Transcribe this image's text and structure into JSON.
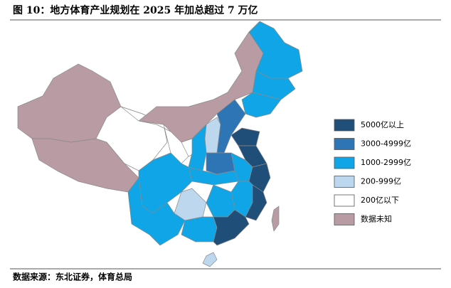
{
  "title": "图 10：地方体育产业规划在 2025 年加总超过 7 万亿",
  "legend": [
    {
      "label": "5000亿以上",
      "color": "#1f4e79"
    },
    {
      "label": "3000-4999亿",
      "color": "#2e75b6"
    },
    {
      "label": "1000-2999亿",
      "color": "#0fa5e6"
    },
    {
      "label": "200-999亿",
      "color": "#bdd7ee"
    },
    {
      "label": "200亿以下",
      "color": "#ffffff"
    },
    {
      "label": "数据未知",
      "color": "#b99ba4"
    }
  ],
  "source": "数据来源：东北证券，体育总局"
}
